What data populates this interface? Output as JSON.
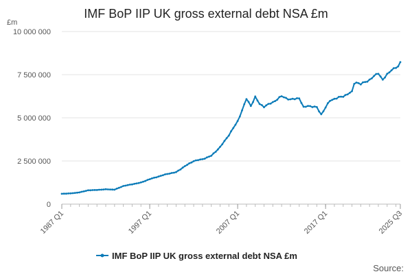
{
  "chart_data": {
    "type": "line",
    "title": "IMF BoP IIP UK gross external debt NSA £m",
    "unit_label": "£m",
    "xlabel": "",
    "ylabel": "£m",
    "ylim": [
      0,
      10000000
    ],
    "y_ticks": [
      0,
      2500000,
      5000000,
      7500000,
      10000000
    ],
    "y_tick_labels": [
      "0",
      "2 500 000",
      "5 000 000",
      "7 500 000",
      "10 000 000"
    ],
    "x_tick_labels": [
      "1987 Q1",
      "1997 Q1",
      "2007 Q1",
      "2017 Q1",
      "2025 Q3"
    ],
    "x_tick_positions": [
      1987.0,
      1997.0,
      2007.0,
      2017.0,
      2025.5
    ],
    "x_range": [
      1987.0,
      2025.5
    ],
    "legend_position": "bottom",
    "source_text": "Source:",
    "series": [
      {
        "name": "IMF BoP IIP UK gross external debt NSA £m",
        "color": "#0b7bb8",
        "anchors": [
          [
            1987.0,
            600000
          ],
          [
            1988.0,
            620000
          ],
          [
            1989.0,
            680000
          ],
          [
            1990.0,
            800000
          ],
          [
            1991.0,
            820000
          ],
          [
            1992.0,
            860000
          ],
          [
            1993.0,
            840000
          ],
          [
            1994.0,
            1050000
          ],
          [
            1995.0,
            1150000
          ],
          [
            1996.0,
            1250000
          ],
          [
            1997.0,
            1450000
          ],
          [
            1998.0,
            1600000
          ],
          [
            1999.0,
            1750000
          ],
          [
            2000.0,
            1850000
          ],
          [
            2001.0,
            2200000
          ],
          [
            2002.0,
            2500000
          ],
          [
            2003.0,
            2600000
          ],
          [
            2004.0,
            2800000
          ],
          [
            2005.0,
            3300000
          ],
          [
            2006.0,
            4000000
          ],
          [
            2007.0,
            4800000
          ],
          [
            2007.75,
            5750000
          ],
          [
            2008.0,
            6100000
          ],
          [
            2008.5,
            5700000
          ],
          [
            2009.0,
            6200000
          ],
          [
            2009.5,
            5800000
          ],
          [
            2010.0,
            5650000
          ],
          [
            2011.0,
            5900000
          ],
          [
            2012.0,
            6250000
          ],
          [
            2013.0,
            6050000
          ],
          [
            2014.0,
            6150000
          ],
          [
            2014.5,
            5600000
          ],
          [
            2015.0,
            5700000
          ],
          [
            2016.0,
            5600000
          ],
          [
            2016.5,
            5200000
          ],
          [
            2017.0,
            5600000
          ],
          [
            2017.5,
            6000000
          ],
          [
            2018.0,
            6100000
          ],
          [
            2019.0,
            6250000
          ],
          [
            2020.0,
            6500000
          ],
          [
            2020.3,
            7100000
          ],
          [
            2021.0,
            6950000
          ],
          [
            2022.0,
            7200000
          ],
          [
            2023.0,
            7600000
          ],
          [
            2023.5,
            7200000
          ],
          [
            2024.0,
            7500000
          ],
          [
            2024.5,
            7800000
          ],
          [
            2025.25,
            7950000
          ],
          [
            2025.5,
            8200000
          ]
        ]
      }
    ]
  }
}
